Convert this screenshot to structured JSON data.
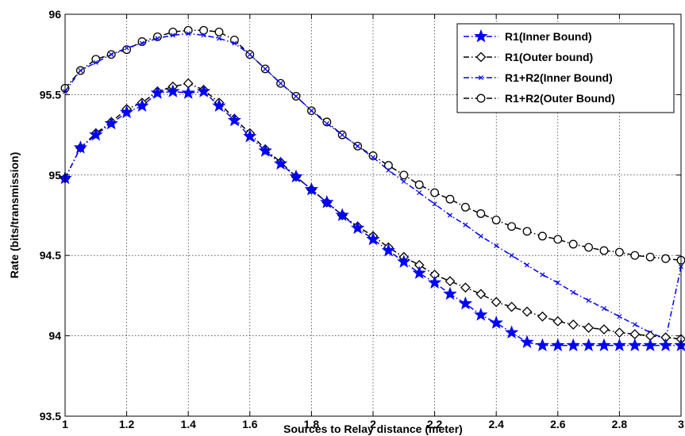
{
  "chart_data": {
    "type": "line",
    "xlabel": "Sources to Relay distance (meter)",
    "ylabel": "Rate (bits/transmission)",
    "xlim": [
      1,
      3
    ],
    "ylim": [
      93.5,
      96
    ],
    "xticks": [
      1,
      1.2,
      1.4,
      1.6,
      1.8,
      2,
      2.2,
      2.4,
      2.6,
      2.8,
      3
    ],
    "xtick_labels": [
      "1",
      "1.2",
      "1.4",
      "1.6",
      "1.8",
      "2",
      "2.2",
      "2.4",
      "2.6",
      "2.8",
      "3"
    ],
    "yticks": [
      93.5,
      94,
      94.5,
      95,
      95.5,
      96
    ],
    "ytick_labels": [
      "93.5",
      "94",
      "94.5",
      "95",
      "95.5",
      "96"
    ],
    "grid": true,
    "legend_position": "top-right",
    "x": [
      1,
      1.05,
      1.1,
      1.15,
      1.2,
      1.25,
      1.3,
      1.35,
      1.4,
      1.45,
      1.5,
      1.55,
      1.6,
      1.65,
      1.7,
      1.75,
      1.8,
      1.85,
      1.9,
      1.95,
      2,
      2.05,
      2.1,
      2.15,
      2.2,
      2.25,
      2.3,
      2.35,
      2.4,
      2.45,
      2.5,
      2.55,
      2.6,
      2.65,
      2.7,
      2.75,
      2.8,
      2.85,
      2.9,
      2.95,
      3
    ],
    "series": [
      {
        "name": "R1(Inner Bound)",
        "color": "#0000ff",
        "marker": "star",
        "values": [
          94.98,
          95.17,
          95.25,
          95.32,
          95.39,
          95.43,
          95.51,
          95.52,
          95.51,
          95.52,
          95.43,
          95.34,
          95.24,
          95.15,
          95.07,
          94.99,
          94.91,
          94.83,
          94.75,
          94.67,
          94.6,
          94.53,
          94.46,
          94.39,
          94.33,
          94.26,
          94.2,
          94.13,
          94.08,
          94.02,
          93.96,
          93.94,
          93.94,
          93.94,
          93.94,
          93.94,
          93.94,
          93.94,
          93.94,
          93.94,
          93.94
        ]
      },
      {
        "name": "R1(Outer bound)",
        "color": "#000000",
        "marker": "diamond",
        "values": [
          94.98,
          95.17,
          95.26,
          95.33,
          95.41,
          95.45,
          95.52,
          95.55,
          95.57,
          95.53,
          95.45,
          95.35,
          95.26,
          95.16,
          95.08,
          94.99,
          94.91,
          94.83,
          94.75,
          94.68,
          94.62,
          94.55,
          94.49,
          94.44,
          94.38,
          94.34,
          94.3,
          94.26,
          94.21,
          94.18,
          94.15,
          94.12,
          94.09,
          94.07,
          94.05,
          94.04,
          94.02,
          94.01,
          94,
          93.99,
          93.98
        ]
      },
      {
        "name": "R1+R2(Inner Bound)",
        "color": "#0000ff",
        "marker": "x",
        "values": [
          95.52,
          95.65,
          95.7,
          95.75,
          95.79,
          95.82,
          95.85,
          95.87,
          95.88,
          95.87,
          95.85,
          95.82,
          95.75,
          95.66,
          95.57,
          95.49,
          95.4,
          95.32,
          95.25,
          95.18,
          95.11,
          95.03,
          94.96,
          94.89,
          94.82,
          94.75,
          94.69,
          94.62,
          94.56,
          94.5,
          94.44,
          94.38,
          94.33,
          94.27,
          94.22,
          94.17,
          94.12,
          94.07,
          94.02,
          93.98,
          94.43
        ]
      },
      {
        "name": "R1+R2(Outer Bound)",
        "color": "#000000",
        "marker": "circle",
        "values": [
          95.54,
          95.65,
          95.72,
          95.75,
          95.78,
          95.83,
          95.86,
          95.89,
          95.9,
          95.9,
          95.89,
          95.84,
          95.75,
          95.66,
          95.57,
          95.49,
          95.4,
          95.33,
          95.25,
          95.18,
          95.12,
          95.06,
          95,
          94.94,
          94.89,
          94.85,
          94.8,
          94.76,
          94.72,
          94.68,
          94.65,
          94.62,
          94.6,
          94.57,
          94.55,
          94.53,
          94.52,
          94.5,
          94.49,
          94.48,
          94.47
        ]
      }
    ]
  }
}
